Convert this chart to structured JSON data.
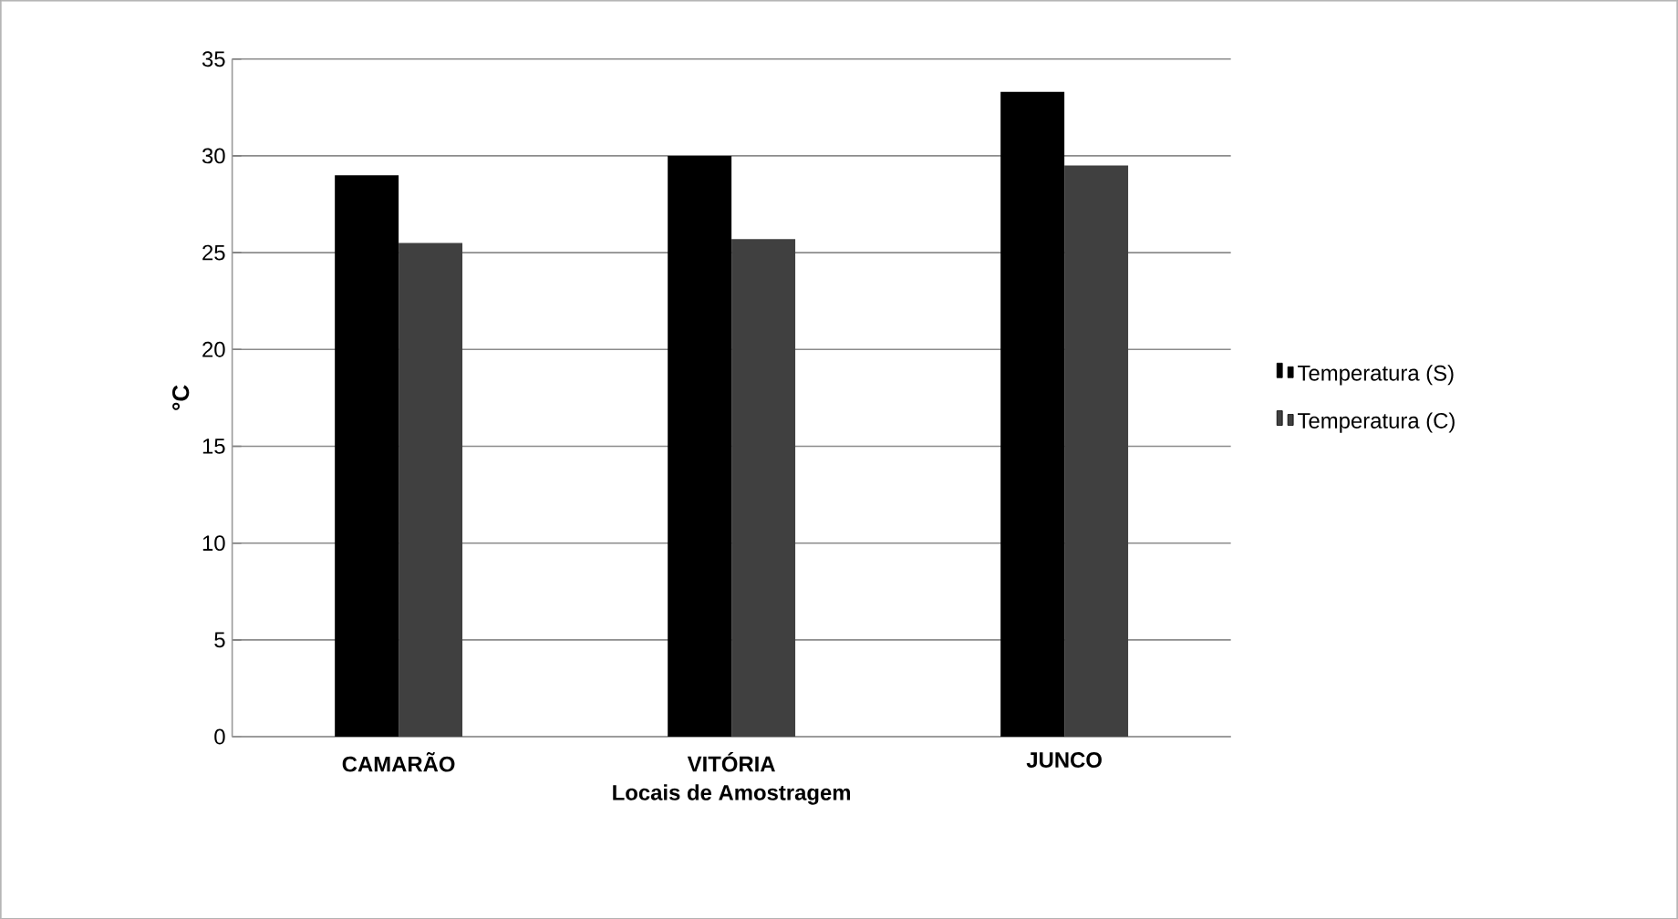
{
  "chart_data": {
    "type": "bar",
    "xlabel": "Locais de Amostragem",
    "ylabel": "°C",
    "categories": [
      "CAMARÃO",
      "VITÓRIA",
      "JUNCO"
    ],
    "series": [
      {
        "name": "Temperatura (S)",
        "color": "#000000",
        "values": [
          29,
          30,
          33.3
        ]
      },
      {
        "name": "Temperatura (C)",
        "color": "#404040",
        "values": [
          25.5,
          25.7,
          29.5
        ]
      }
    ],
    "ylim": [
      0,
      35
    ],
    "yticks": [
      0,
      5,
      10,
      15,
      20,
      25,
      30,
      35
    ],
    "grid": "y",
    "legend": "right"
  }
}
